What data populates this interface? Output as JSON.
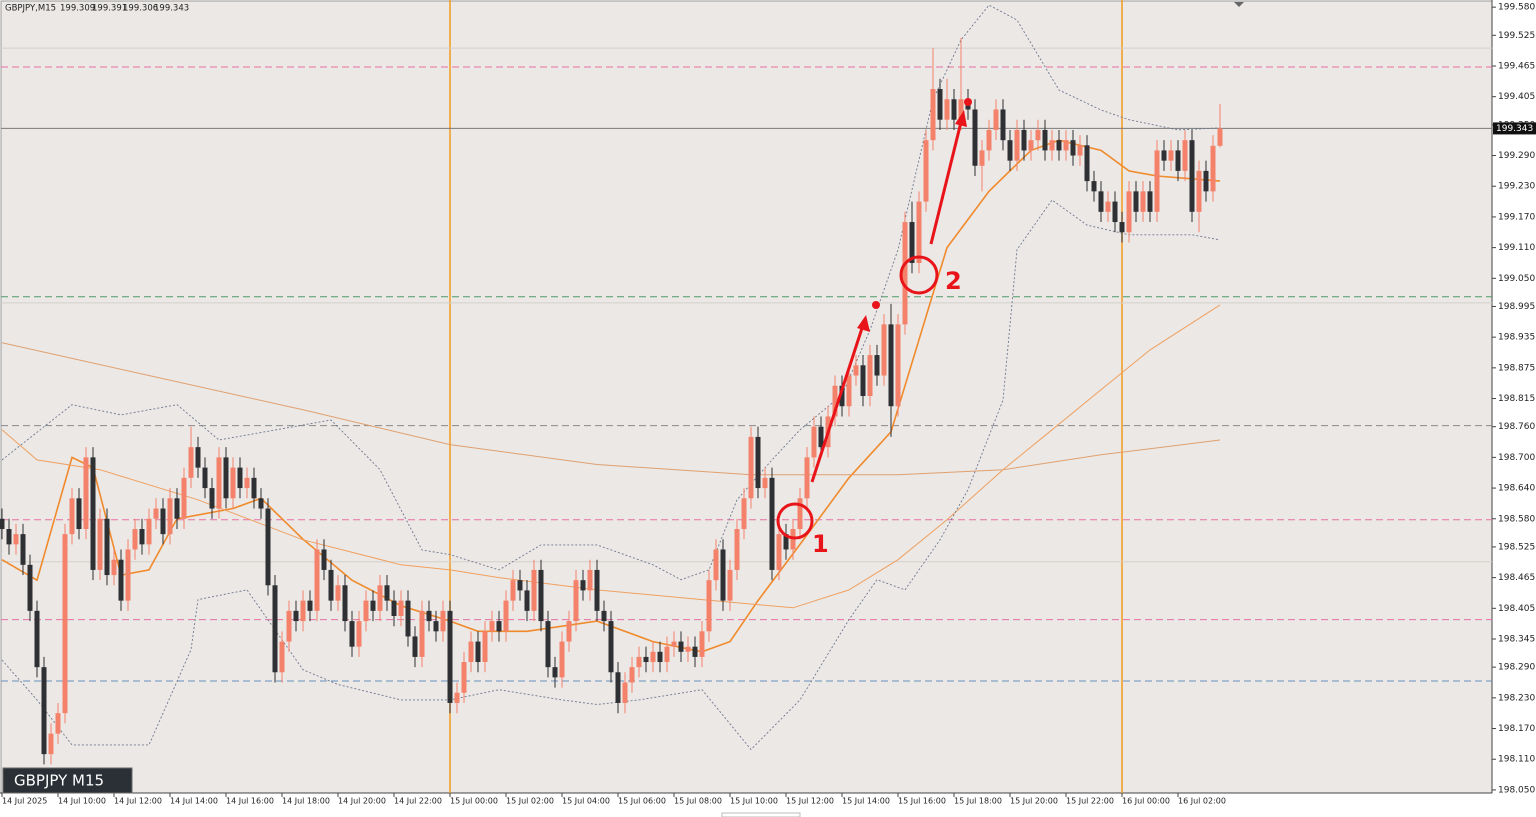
{
  "chart_data": {
    "type": "candlestick",
    "symbol": "GBPJPY,M15",
    "badge": "GBPJPY M15",
    "categories": [
      "14 Jul 2025",
      null,
      null,
      null,
      null,
      null,
      null,
      null,
      "14 Jul 10:00",
      null,
      null,
      null,
      null,
      null,
      null,
      null,
      "14 Jul 12:00",
      null,
      null,
      null,
      null,
      null,
      null,
      null,
      "14 Jul 14:00",
      null,
      null,
      null,
      null,
      null,
      null,
      null,
      "14 Jul 16:00",
      null,
      null,
      null,
      null,
      null,
      null,
      null,
      "14 Jul 18:00",
      null,
      null,
      null,
      null,
      null,
      null,
      null,
      "14 Jul 20:00",
      null,
      null,
      null,
      null,
      null,
      null,
      null,
      "14 Jul 22:00",
      null,
      null,
      null,
      null,
      null,
      null,
      null,
      "15 Jul 00:00",
      null,
      null,
      null,
      null,
      null,
      null,
      null,
      "15 Jul 02:00",
      null,
      null,
      null,
      null,
      null,
      null,
      null,
      "15 Jul 04:00",
      null,
      null,
      null,
      null,
      null,
      null,
      null,
      "15 Jul 06:00",
      null,
      null,
      null,
      null,
      null,
      null,
      null,
      "15 Jul 08:00",
      null,
      null,
      null,
      null,
      null,
      null,
      null,
      "15 Jul 10:00",
      null,
      null,
      null,
      null,
      null,
      null,
      null,
      "15 Jul 12:00",
      null,
      null,
      null,
      null,
      null,
      null,
      null,
      "15 Jul 14:00",
      null,
      null,
      null,
      null,
      null,
      null,
      null,
      "15 Jul 16:00",
      null,
      null,
      null,
      null,
      null,
      null,
      null,
      "15 Jul 18:00",
      null,
      null,
      null,
      null,
      null,
      null,
      null,
      "15 Jul 20:00",
      null,
      null,
      null,
      null,
      null,
      null,
      null,
      "15 Jul 22:00",
      null,
      null,
      null,
      null,
      null,
      null,
      null,
      "16 Jul 00:00",
      null,
      null,
      null,
      null,
      null,
      null,
      null,
      "16 Jul 02:00",
      null,
      null,
      null,
      null,
      null,
      null
    ],
    "open": [
      198.58,
      198.56,
      198.53,
      198.55,
      198.49,
      198.4,
      198.29,
      198.12,
      198.16,
      198.2,
      198.55,
      198.62,
      198.56,
      198.7,
      198.48,
      198.58,
      198.47,
      198.5,
      198.42,
      198.52,
      198.56,
      198.53,
      198.58,
      198.6,
      198.55,
      198.62,
      198.58,
      198.66,
      198.72,
      198.68,
      198.64,
      198.6,
      198.7,
      198.62,
      198.68,
      198.64,
      198.66,
      198.62,
      198.6,
      198.45,
      198.28,
      198.34,
      198.4,
      198.38,
      198.42,
      198.4,
      198.52,
      198.48,
      198.42,
      198.45,
      198.38,
      198.33,
      198.38,
      198.42,
      198.4,
      198.45,
      198.42,
      198.39,
      198.42,
      198.35,
      198.31,
      198.4,
      198.38,
      198.36,
      198.4,
      198.22,
      198.24,
      198.3,
      198.34,
      198.3,
      198.36,
      198.38,
      198.36,
      198.42,
      198.46,
      198.44,
      198.4,
      198.48,
      198.38,
      198.29,
      198.27,
      198.34,
      198.38,
      198.46,
      198.44,
      198.48,
      198.4,
      198.38,
      198.28,
      198.22,
      198.26,
      198.29,
      198.31,
      198.3,
      198.32,
      198.3,
      198.33,
      198.34,
      198.32,
      198.33,
      198.31,
      198.36,
      198.46,
      198.52,
      198.42,
      198.48,
      198.56,
      198.62,
      198.74,
      198.64,
      198.66,
      198.48,
      198.55,
      198.52,
      198.56,
      198.62,
      198.7,
      198.76,
      198.72,
      198.78,
      198.84,
      198.8,
      198.86,
      198.88,
      198.82,
      198.9,
      198.86,
      198.96,
      198.8,
      198.96,
      199.16,
      199.08,
      199.2,
      199.32,
      199.42,
      199.36,
      199.4,
      199.36,
      199.4,
      199.38,
      199.27,
      199.3,
      199.34,
      199.38,
      199.32,
      199.28,
      199.34,
      199.3,
      199.32,
      199.34,
      199.3,
      199.32,
      199.3,
      199.32,
      199.29,
      199.31,
      199.24,
      199.22,
      199.18,
      199.2,
      199.16,
      199.14,
      199.22,
      199.18,
      199.22,
      199.18,
      199.3,
      199.28,
      199.3,
      199.26,
      199.32,
      199.18,
      199.26,
      199.22,
      199.309
    ],
    "high": [
      198.6,
      198.58,
      198.57,
      198.57,
      198.51,
      198.42,
      198.31,
      198.18,
      198.22,
      198.57,
      198.64,
      198.64,
      198.72,
      198.72,
      198.6,
      198.6,
      198.52,
      198.52,
      198.54,
      198.58,
      198.58,
      198.6,
      198.62,
      198.62,
      198.64,
      198.64,
      198.68,
      198.76,
      198.74,
      198.7,
      198.66,
      198.72,
      198.72,
      198.7,
      198.7,
      198.68,
      198.68,
      198.64,
      198.62,
      198.47,
      198.36,
      198.42,
      198.42,
      198.44,
      198.44,
      198.54,
      198.54,
      198.5,
      198.47,
      198.47,
      198.4,
      198.4,
      198.44,
      198.44,
      198.47,
      198.47,
      198.44,
      198.44,
      198.44,
      198.37,
      198.42,
      198.42,
      198.4,
      198.42,
      198.42,
      198.26,
      198.32,
      198.36,
      198.36,
      198.38,
      198.4,
      198.4,
      198.44,
      198.48,
      198.48,
      198.46,
      198.5,
      198.5,
      198.4,
      198.31,
      198.36,
      198.4,
      198.48,
      198.48,
      198.5,
      198.5,
      198.42,
      198.4,
      198.3,
      198.28,
      198.31,
      198.33,
      198.33,
      198.34,
      198.34,
      198.35,
      198.36,
      198.36,
      198.35,
      198.35,
      198.38,
      198.48,
      198.54,
      198.54,
      198.5,
      198.58,
      198.64,
      198.76,
      198.76,
      198.68,
      198.68,
      198.57,
      198.57,
      198.58,
      198.64,
      198.72,
      198.78,
      198.78,
      198.8,
      198.86,
      198.86,
      198.88,
      198.9,
      198.9,
      198.92,
      198.92,
      198.98,
      199.0,
      198.98,
      199.18,
      199.2,
      199.22,
      199.34,
      199.5,
      199.44,
      199.44,
      199.42,
      199.52,
      199.42,
      199.4,
      199.32,
      199.36,
      199.4,
      199.4,
      199.34,
      199.36,
      199.36,
      199.34,
      199.36,
      199.36,
      199.34,
      199.34,
      199.34,
      199.34,
      199.33,
      199.33,
      199.26,
      199.24,
      199.22,
      199.22,
      199.18,
      199.24,
      199.24,
      199.24,
      199.24,
      199.32,
      199.32,
      199.32,
      199.32,
      199.34,
      199.34,
      199.28,
      199.28,
      199.33,
      199.391
    ],
    "low": [
      198.54,
      198.51,
      198.51,
      198.47,
      198.38,
      198.27,
      198.1,
      198.1,
      198.14,
      198.18,
      198.53,
      198.54,
      198.54,
      198.46,
      198.46,
      198.45,
      198.45,
      198.4,
      198.4,
      198.5,
      198.51,
      198.51,
      198.56,
      198.53,
      198.53,
      198.56,
      198.56,
      198.64,
      198.66,
      198.62,
      198.58,
      198.58,
      198.6,
      198.6,
      198.62,
      198.62,
      198.6,
      198.58,
      198.43,
      198.26,
      198.26,
      198.32,
      198.36,
      198.36,
      198.38,
      198.38,
      198.46,
      198.4,
      198.4,
      198.36,
      198.31,
      198.31,
      198.36,
      198.38,
      198.38,
      198.4,
      198.37,
      198.37,
      198.33,
      198.29,
      198.29,
      198.36,
      198.34,
      198.34,
      198.2,
      198.2,
      198.22,
      198.28,
      198.28,
      198.28,
      198.34,
      198.34,
      198.34,
      198.4,
      198.42,
      198.38,
      198.38,
      198.36,
      198.27,
      198.25,
      198.25,
      198.32,
      198.36,
      198.42,
      198.42,
      198.38,
      198.36,
      198.26,
      198.2,
      198.2,
      198.24,
      198.27,
      198.28,
      198.28,
      198.28,
      198.28,
      198.31,
      198.3,
      198.3,
      198.29,
      198.29,
      198.34,
      198.44,
      198.4,
      198.4,
      198.46,
      198.54,
      198.6,
      198.62,
      198.62,
      198.46,
      198.46,
      198.5,
      198.5,
      198.54,
      198.6,
      198.68,
      198.7,
      198.7,
      198.76,
      198.78,
      198.78,
      198.84,
      198.8,
      198.8,
      198.84,
      198.84,
      198.74,
      198.78,
      198.94,
      199.06,
      199.06,
      199.18,
      199.3,
      199.34,
      199.34,
      199.34,
      199.34,
      199.36,
      199.25,
      199.22,
      199.28,
      199.32,
      199.3,
      199.26,
      199.26,
      199.28,
      199.28,
      199.3,
      199.28,
      199.28,
      199.28,
      199.28,
      199.27,
      199.27,
      199.22,
      199.2,
      199.16,
      199.16,
      199.14,
      199.12,
      199.12,
      199.16,
      199.16,
      199.16,
      199.16,
      199.26,
      199.26,
      199.24,
      199.24,
      199.16,
      199.14,
      199.2,
      199.2,
      199.306
    ],
    "close": [
      198.56,
      198.53,
      198.55,
      198.49,
      198.4,
      198.29,
      198.12,
      198.16,
      198.2,
      198.55,
      198.62,
      198.56,
      198.7,
      198.48,
      198.58,
      198.47,
      198.5,
      198.42,
      198.52,
      198.56,
      198.53,
      198.58,
      198.6,
      198.55,
      198.62,
      198.58,
      198.66,
      198.72,
      198.68,
      198.64,
      198.6,
      198.7,
      198.62,
      198.68,
      198.64,
      198.66,
      198.62,
      198.6,
      198.45,
      198.28,
      198.34,
      198.4,
      198.38,
      198.42,
      198.4,
      198.52,
      198.48,
      198.42,
      198.45,
      198.38,
      198.33,
      198.38,
      198.42,
      198.4,
      198.45,
      198.42,
      198.39,
      198.42,
      198.35,
      198.31,
      198.4,
      198.38,
      198.36,
      198.4,
      198.22,
      198.24,
      198.3,
      198.34,
      198.3,
      198.36,
      198.38,
      198.36,
      198.42,
      198.46,
      198.44,
      198.4,
      198.48,
      198.38,
      198.29,
      198.27,
      198.34,
      198.38,
      198.46,
      198.44,
      198.48,
      198.4,
      198.38,
      198.28,
      198.22,
      198.26,
      198.29,
      198.31,
      198.3,
      198.32,
      198.3,
      198.33,
      198.34,
      198.32,
      198.33,
      198.31,
      198.36,
      198.46,
      198.52,
      198.42,
      198.48,
      198.56,
      198.62,
      198.74,
      198.64,
      198.66,
      198.48,
      198.55,
      198.52,
      198.56,
      198.62,
      198.7,
      198.76,
      198.72,
      198.78,
      198.84,
      198.8,
      198.86,
      198.88,
      198.82,
      198.9,
      198.86,
      198.96,
      198.8,
      198.96,
      199.16,
      199.08,
      199.2,
      199.32,
      199.42,
      199.36,
      199.4,
      199.36,
      199.4,
      199.38,
      199.27,
      199.3,
      199.34,
      199.38,
      199.32,
      199.28,
      199.34,
      199.3,
      199.32,
      199.34,
      199.3,
      199.32,
      199.3,
      199.32,
      199.29,
      199.31,
      199.24,
      199.22,
      199.18,
      199.2,
      199.16,
      199.14,
      199.22,
      199.18,
      199.22,
      199.18,
      199.3,
      199.28,
      199.3,
      199.26,
      199.32,
      199.18,
      199.26,
      199.22,
      199.309,
      199.343
    ],
    "up_color": "#f4826a",
    "down_color": "#2f3033",
    "ylim": [
      198.044,
      199.594
    ],
    "yticks": [
      {
        "value": 199.58,
        "label": "199.580"
      },
      199.525,
      199.465,
      199.405,
      {
        "value": 199.35,
        "label": "199.350"
      },
      {
        "value": 199.29,
        "label": "199.290"
      },
      {
        "value": 199.23,
        "label": "199.230"
      },
      {
        "value": 199.17,
        "label": "199.170"
      },
      {
        "value": 199.11,
        "label": "199.110"
      },
      {
        "value": 199.05,
        "label": "199.050"
      },
      198.995,
      198.935,
      198.875,
      198.815,
      {
        "value": 198.76,
        "label": "198.760"
      },
      {
        "value": 198.7,
        "label": "198.700"
      },
      {
        "value": 198.64,
        "label": "198.640"
      },
      {
        "value": 198.58,
        "label": "198.580"
      },
      198.525,
      198.465,
      198.405,
      198.345,
      {
        "value": 198.29,
        "label": "198.290"
      },
      {
        "value": 198.23,
        "label": "198.230"
      },
      {
        "value": 198.17,
        "label": "198.170"
      },
      {
        "value": 198.11,
        "label": "198.110"
      },
      {
        "value": 198.05,
        "label": "198.050"
      }
    ],
    "levels": [
      {
        "value": 199.5,
        "color": "#d4d0cc",
        "style": "solid"
      },
      {
        "value": 199.463,
        "color": "#e86fa3",
        "style": "dashed"
      },
      {
        "value": 199.014,
        "color": "#4f9a6c",
        "style": "dashed"
      },
      {
        "value": 199.002,
        "color": "#d4d0cc",
        "style": "solid"
      },
      {
        "value": 198.762,
        "color": "#8a8a8a",
        "style": "dashed"
      },
      {
        "value": 198.578,
        "color": "#e86fa3",
        "style": "dashed"
      },
      {
        "value": 198.496,
        "color": "#d4d0cc",
        "style": "solid"
      },
      {
        "value": 198.383,
        "color": "#e86fa3",
        "style": "dashed"
      },
      {
        "value": 198.263,
        "color": "#6a8fbf",
        "style": "dashed"
      }
    ],
    "bid_color": "#7a7a7a",
    "overlays": [
      {
        "color": "#f08a2c",
        "width": 1.6,
        "style": "solid",
        "x": [
          0,
          5,
          10,
          13,
          17,
          21,
          25,
          33,
          37,
          43,
          50,
          57,
          64,
          68,
          75,
          85,
          93,
          100,
          104,
          108,
          114,
          121,
          127,
          131,
          135,
          141,
          147,
          151,
          157,
          161,
          165,
          174
        ],
        "values": [
          198.5,
          198.46,
          198.7,
          198.68,
          198.47,
          198.48,
          198.58,
          198.6,
          198.62,
          198.54,
          198.46,
          198.41,
          198.38,
          198.36,
          198.36,
          198.38,
          198.34,
          198.32,
          198.34,
          198.42,
          198.53,
          198.66,
          198.75,
          198.93,
          199.11,
          199.22,
          199.3,
          199.32,
          199.3,
          199.26,
          199.25,
          199.24
        ]
      },
      {
        "color": "#f0a060",
        "width": 1,
        "style": "solid",
        "x": [
          0,
          5,
          14,
          28,
          43,
          57,
          64,
          71,
          85,
          100,
          113,
          121,
          128,
          135,
          143,
          150,
          157,
          164,
          174
        ],
        "values": [
          198.754,
          198.695,
          198.676,
          198.617,
          198.539,
          198.49,
          198.48,
          198.465,
          198.441,
          198.422,
          198.406,
          198.441,
          198.5,
          198.578,
          198.676,
          198.754,
          198.832,
          198.91,
          198.998
        ]
      },
      {
        "color": "#e0a070",
        "width": 1,
        "style": "solid",
        "x": [
          0,
          43,
          64,
          85,
          107,
          128,
          143,
          157,
          174
        ],
        "values": [
          198.924,
          198.793,
          198.725,
          198.686,
          198.666,
          198.666,
          198.676,
          198.705,
          198.734
        ]
      },
      {
        "color": "#6e7890",
        "width": 0.9,
        "style": "dotted",
        "x": [
          0,
          10,
          17,
          25,
          31,
          47,
          54,
          60,
          64,
          71,
          77,
          85,
          93,
          97,
          101,
          105,
          110,
          114,
          120,
          124,
          128,
          133,
          137,
          141,
          145,
          151,
          157,
          161,
          168,
          174
        ],
        "values": [
          198.695,
          198.803,
          198.783,
          198.803,
          198.734,
          198.773,
          198.676,
          198.519,
          198.51,
          198.48,
          198.529,
          198.529,
          198.49,
          198.461,
          198.48,
          198.617,
          198.695,
          198.754,
          198.822,
          198.949,
          199.106,
          199.399,
          199.516,
          199.584,
          199.555,
          199.418,
          199.379,
          199.36,
          199.34,
          199.344
        ]
      },
      {
        "color": "#6e7890",
        "width": 0.9,
        "style": "dotted",
        "x": [
          0,
          5,
          10,
          21,
          27,
          28,
          35,
          43,
          48,
          57,
          64,
          71,
          80,
          85,
          91,
          100,
          107,
          114,
          121,
          125,
          129,
          134,
          138,
          143,
          145,
          150,
          155,
          161,
          170,
          174
        ],
        "values": [
          198.304,
          198.226,
          198.138,
          198.138,
          198.324,
          198.422,
          198.441,
          198.285,
          198.256,
          198.226,
          198.226,
          198.246,
          198.226,
          198.217,
          198.226,
          198.246,
          198.129,
          198.226,
          198.383,
          198.461,
          198.441,
          198.539,
          198.637,
          198.812,
          199.106,
          199.203,
          199.154,
          199.135,
          199.135,
          199.125
        ]
      }
    ],
    "annotations": [
      "1",
      "2"
    ]
  }
}
